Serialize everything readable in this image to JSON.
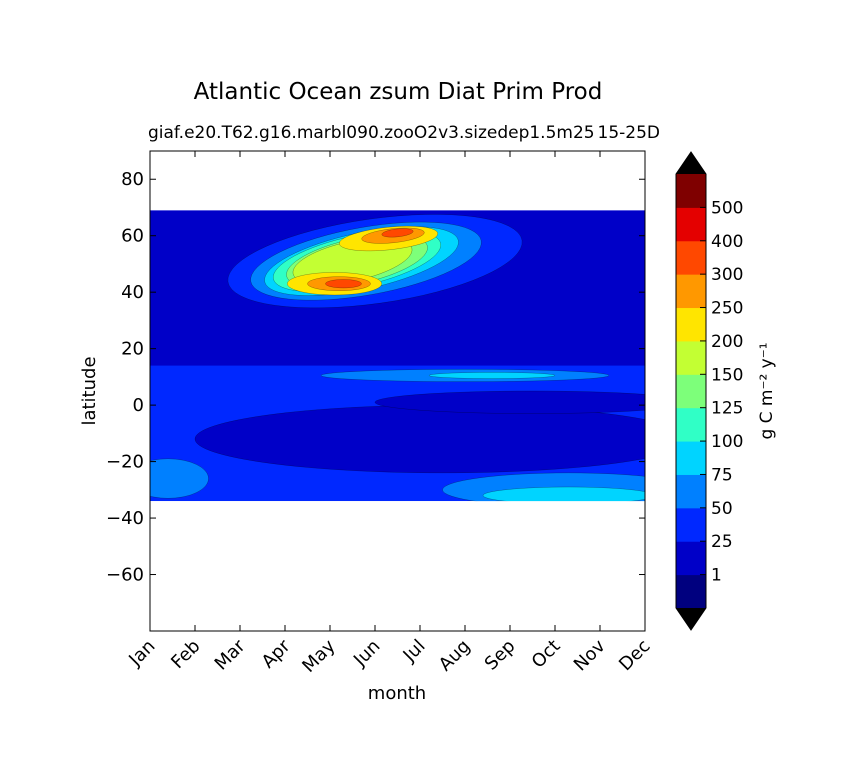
{
  "chart_data": {
    "type": "heatmap",
    "title": "Atlantic Ocean zsum Diat Prim Prod",
    "subtitle_left": "giaf.e20.T62.g16.marbl090.zooO2v3.sizedep1.5m25",
    "subtitle_right": "15-25D",
    "xlabel": "month",
    "ylabel": "latitude",
    "x_ticks": [
      "Jan",
      "Feb",
      "Mar",
      "Apr",
      "May",
      "Jun",
      "Jul",
      "Aug",
      "Sep",
      "Oct",
      "Nov",
      "Dec"
    ],
    "y_ticks": [
      80,
      60,
      40,
      20,
      0,
      -20,
      -40,
      -60
    ],
    "ylim": [
      -80,
      90
    ],
    "data_lat_range": [
      -34,
      69
    ],
    "colorbar": {
      "label": "g C m⁻² y⁻¹",
      "levels": [
        1,
        25,
        50,
        75,
        100,
        125,
        150,
        200,
        250,
        300,
        400,
        500
      ],
      "tick_labels": [
        "1",
        "25",
        "50",
        "75",
        "100",
        "125",
        "150",
        "200",
        "250",
        "300",
        "400",
        "500"
      ],
      "colors": [
        "#00007f",
        "#0000c8",
        "#0028ff",
        "#0080ff",
        "#00d4ff",
        "#30ffc6",
        "#7dff7a",
        "#c3ff33",
        "#ffe500",
        "#ff9800",
        "#ff4800",
        "#e40000",
        "#7f0000"
      ],
      "extend_color": "#000000"
    },
    "features": [
      {
        "desc": "spring bloom",
        "month_center": 4.2,
        "lat_center": 42,
        "peak_class": "400-500"
      },
      {
        "desc": "summer bloom",
        "month_center": 5.3,
        "lat_center": 60,
        "peak_class": "300-400"
      }
    ]
  }
}
